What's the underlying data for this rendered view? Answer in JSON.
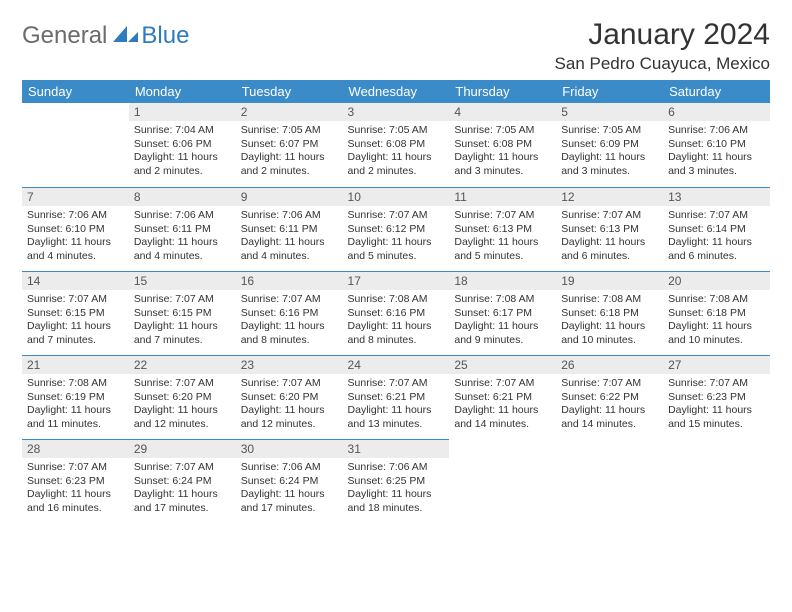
{
  "logo": {
    "general": "General",
    "blue": "Blue"
  },
  "title": "January 2024",
  "location": "San Pedro Cuayuca, Mexico",
  "colors": {
    "header_bg": "#3b8bc9",
    "header_text": "#ffffff",
    "daynum_bg": "#ececec",
    "row_divider": "#3b8bc9",
    "body_text": "#333333",
    "logo_gray": "#6b6b6b",
    "logo_blue": "#2f7bbf"
  },
  "weekdays": [
    "Sunday",
    "Monday",
    "Tuesday",
    "Wednesday",
    "Thursday",
    "Friday",
    "Saturday"
  ],
  "weeks": [
    [
      null,
      {
        "n": "1",
        "sr": "Sunrise: 7:04 AM",
        "ss": "Sunset: 6:06 PM",
        "dl": "Daylight: 11 hours and 2 minutes."
      },
      {
        "n": "2",
        "sr": "Sunrise: 7:05 AM",
        "ss": "Sunset: 6:07 PM",
        "dl": "Daylight: 11 hours and 2 minutes."
      },
      {
        "n": "3",
        "sr": "Sunrise: 7:05 AM",
        "ss": "Sunset: 6:08 PM",
        "dl": "Daylight: 11 hours and 2 minutes."
      },
      {
        "n": "4",
        "sr": "Sunrise: 7:05 AM",
        "ss": "Sunset: 6:08 PM",
        "dl": "Daylight: 11 hours and 3 minutes."
      },
      {
        "n": "5",
        "sr": "Sunrise: 7:05 AM",
        "ss": "Sunset: 6:09 PM",
        "dl": "Daylight: 11 hours and 3 minutes."
      },
      {
        "n": "6",
        "sr": "Sunrise: 7:06 AM",
        "ss": "Sunset: 6:10 PM",
        "dl": "Daylight: 11 hours and 3 minutes."
      }
    ],
    [
      {
        "n": "7",
        "sr": "Sunrise: 7:06 AM",
        "ss": "Sunset: 6:10 PM",
        "dl": "Daylight: 11 hours and 4 minutes."
      },
      {
        "n": "8",
        "sr": "Sunrise: 7:06 AM",
        "ss": "Sunset: 6:11 PM",
        "dl": "Daylight: 11 hours and 4 minutes."
      },
      {
        "n": "9",
        "sr": "Sunrise: 7:06 AM",
        "ss": "Sunset: 6:11 PM",
        "dl": "Daylight: 11 hours and 4 minutes."
      },
      {
        "n": "10",
        "sr": "Sunrise: 7:07 AM",
        "ss": "Sunset: 6:12 PM",
        "dl": "Daylight: 11 hours and 5 minutes."
      },
      {
        "n": "11",
        "sr": "Sunrise: 7:07 AM",
        "ss": "Sunset: 6:13 PM",
        "dl": "Daylight: 11 hours and 5 minutes."
      },
      {
        "n": "12",
        "sr": "Sunrise: 7:07 AM",
        "ss": "Sunset: 6:13 PM",
        "dl": "Daylight: 11 hours and 6 minutes."
      },
      {
        "n": "13",
        "sr": "Sunrise: 7:07 AM",
        "ss": "Sunset: 6:14 PM",
        "dl": "Daylight: 11 hours and 6 minutes."
      }
    ],
    [
      {
        "n": "14",
        "sr": "Sunrise: 7:07 AM",
        "ss": "Sunset: 6:15 PM",
        "dl": "Daylight: 11 hours and 7 minutes."
      },
      {
        "n": "15",
        "sr": "Sunrise: 7:07 AM",
        "ss": "Sunset: 6:15 PM",
        "dl": "Daylight: 11 hours and 7 minutes."
      },
      {
        "n": "16",
        "sr": "Sunrise: 7:07 AM",
        "ss": "Sunset: 6:16 PM",
        "dl": "Daylight: 11 hours and 8 minutes."
      },
      {
        "n": "17",
        "sr": "Sunrise: 7:08 AM",
        "ss": "Sunset: 6:16 PM",
        "dl": "Daylight: 11 hours and 8 minutes."
      },
      {
        "n": "18",
        "sr": "Sunrise: 7:08 AM",
        "ss": "Sunset: 6:17 PM",
        "dl": "Daylight: 11 hours and 9 minutes."
      },
      {
        "n": "19",
        "sr": "Sunrise: 7:08 AM",
        "ss": "Sunset: 6:18 PM",
        "dl": "Daylight: 11 hours and 10 minutes."
      },
      {
        "n": "20",
        "sr": "Sunrise: 7:08 AM",
        "ss": "Sunset: 6:18 PM",
        "dl": "Daylight: 11 hours and 10 minutes."
      }
    ],
    [
      {
        "n": "21",
        "sr": "Sunrise: 7:08 AM",
        "ss": "Sunset: 6:19 PM",
        "dl": "Daylight: 11 hours and 11 minutes."
      },
      {
        "n": "22",
        "sr": "Sunrise: 7:07 AM",
        "ss": "Sunset: 6:20 PM",
        "dl": "Daylight: 11 hours and 12 minutes."
      },
      {
        "n": "23",
        "sr": "Sunrise: 7:07 AM",
        "ss": "Sunset: 6:20 PM",
        "dl": "Daylight: 11 hours and 12 minutes."
      },
      {
        "n": "24",
        "sr": "Sunrise: 7:07 AM",
        "ss": "Sunset: 6:21 PM",
        "dl": "Daylight: 11 hours and 13 minutes."
      },
      {
        "n": "25",
        "sr": "Sunrise: 7:07 AM",
        "ss": "Sunset: 6:21 PM",
        "dl": "Daylight: 11 hours and 14 minutes."
      },
      {
        "n": "26",
        "sr": "Sunrise: 7:07 AM",
        "ss": "Sunset: 6:22 PM",
        "dl": "Daylight: 11 hours and 14 minutes."
      },
      {
        "n": "27",
        "sr": "Sunrise: 7:07 AM",
        "ss": "Sunset: 6:23 PM",
        "dl": "Daylight: 11 hours and 15 minutes."
      }
    ],
    [
      {
        "n": "28",
        "sr": "Sunrise: 7:07 AM",
        "ss": "Sunset: 6:23 PM",
        "dl": "Daylight: 11 hours and 16 minutes."
      },
      {
        "n": "29",
        "sr": "Sunrise: 7:07 AM",
        "ss": "Sunset: 6:24 PM",
        "dl": "Daylight: 11 hours and 17 minutes."
      },
      {
        "n": "30",
        "sr": "Sunrise: 7:06 AM",
        "ss": "Sunset: 6:24 PM",
        "dl": "Daylight: 11 hours and 17 minutes."
      },
      {
        "n": "31",
        "sr": "Sunrise: 7:06 AM",
        "ss": "Sunset: 6:25 PM",
        "dl": "Daylight: 11 hours and 18 minutes."
      },
      null,
      null,
      null
    ]
  ]
}
